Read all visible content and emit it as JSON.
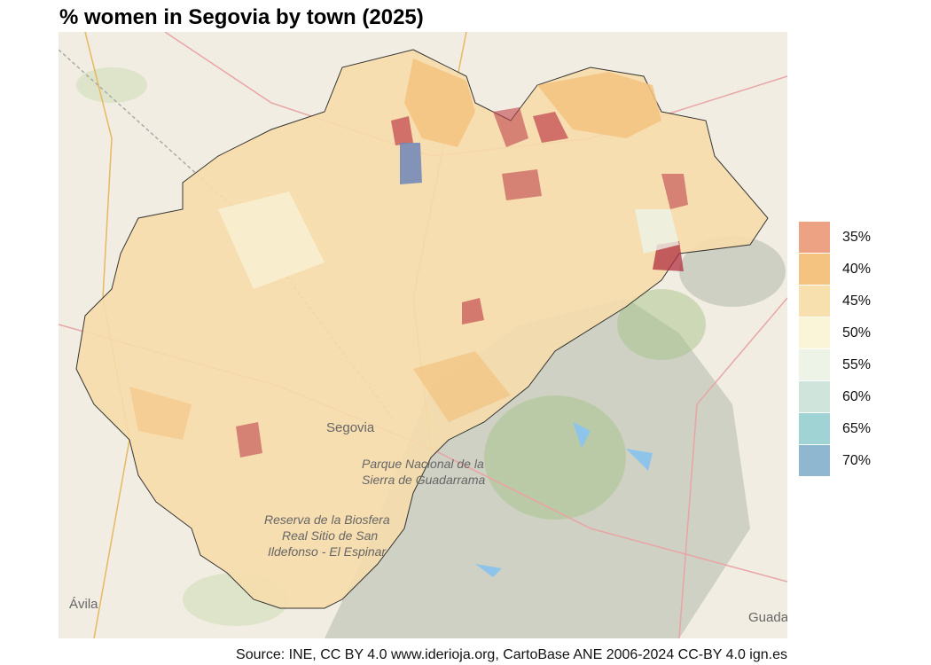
{
  "title": "% women in Segovia by town (2025)",
  "map": {
    "basemap_labels": {
      "city": "Segovia",
      "park_line1": "Parque Nacional de la",
      "park_line2": "Sierra de Guadarrama",
      "reserve_line1": "Reserva de la Biosfera",
      "reserve_line2": "Real Sitio de San",
      "reserve_line3": "Ildefonso - El Espinar",
      "avila": "Ávila",
      "guadalajara": "Guada"
    },
    "colors": {
      "background": "#f1ede2",
      "border": "#222222",
      "low": "#c0424a",
      "high": "#6e86b8"
    }
  },
  "legend": {
    "items": [
      {
        "label": "35%",
        "color": "#eca283"
      },
      {
        "label": "40%",
        "color": "#f4c380"
      },
      {
        "label": "45%",
        "color": "#f8dfae"
      },
      {
        "label": "50%",
        "color": "#faf5d8"
      },
      {
        "label": "55%",
        "color": "#eef3e8"
      },
      {
        "label": "60%",
        "color": "#cfe5dc"
      },
      {
        "label": "65%",
        "color": "#a0d3d4"
      },
      {
        "label": "70%",
        "color": "#8fb8d0"
      }
    ]
  },
  "source": "Source: INE, CC BY 4.0 www.iderioja.org, CartoBase ANE 2006-2024 CC-BY 4.0 ign.es"
}
